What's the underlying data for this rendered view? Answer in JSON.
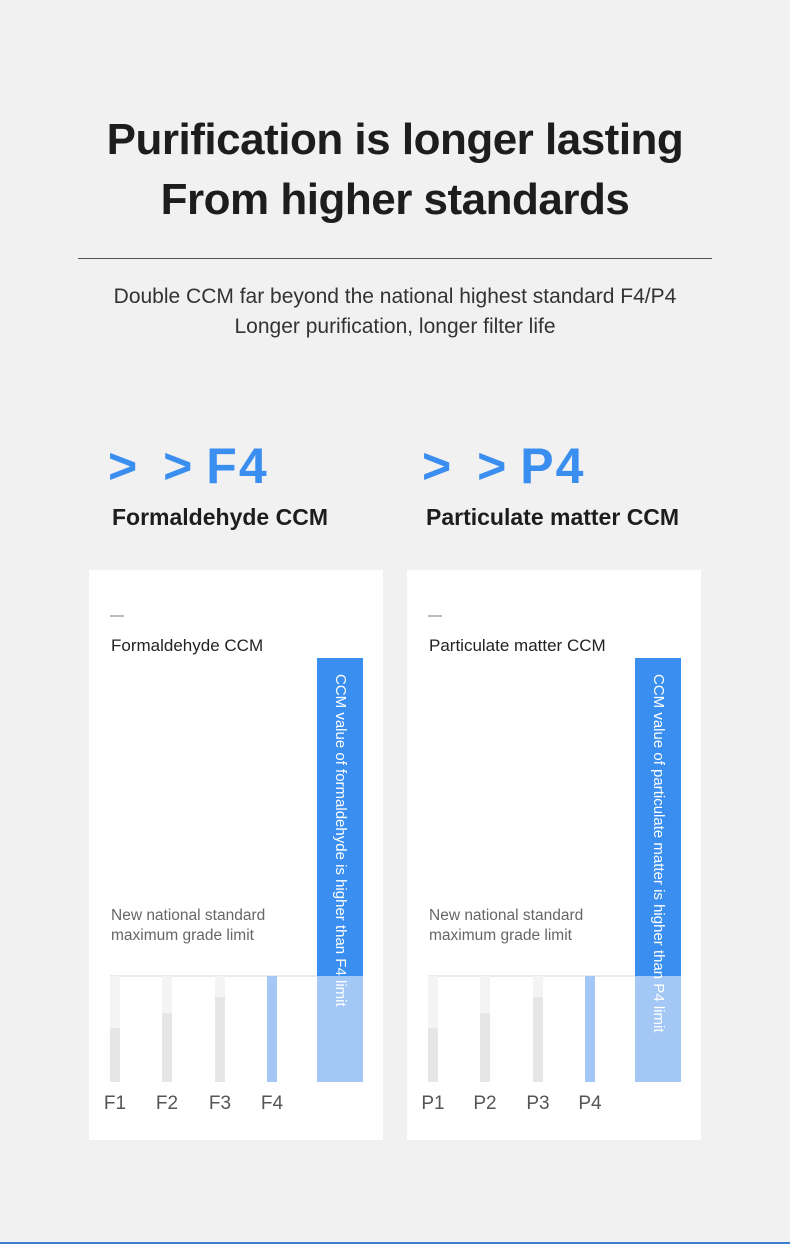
{
  "headline": {
    "line1": "Purification is longer lasting",
    "line2": "From higher standards"
  },
  "subtitle": {
    "line1": "Double CCM far beyond the national highest standard F4/P4",
    "line2": "Longer purification, longer filter life"
  },
  "colors": {
    "accent": "#3a8ef0",
    "bar_highlight": "#a3c8f6",
    "bar_grey": "#e6e6e6",
    "bar_grey_top": "#f4f4f4"
  },
  "left": {
    "arrows": "> >",
    "grade": "F4",
    "label": "Formaldehyde CCM"
  },
  "right": {
    "arrows": "> >",
    "grade": "P4",
    "label": "Particulate matter CCM"
  },
  "chart_data": [
    {
      "type": "bar",
      "title": "Formaldehyde CCM",
      "categories": [
        "F1",
        "F2",
        "F3",
        "F4",
        ""
      ],
      "values": [
        51,
        65,
        80,
        100,
        400
      ],
      "highlight_index": 3,
      "product_index": 4,
      "limit_value": 100,
      "limit_label_line1": "New national standard",
      "limit_label_line2": "maximum grade limit",
      "product_annotation": "CCM value of formaldehyde is higher than F4 limit",
      "ylim": [
        0,
        400
      ],
      "grid": false
    },
    {
      "type": "bar",
      "title": "Particulate matter CCM",
      "categories": [
        "P1",
        "P2",
        "P3",
        "P4",
        ""
      ],
      "values": [
        51,
        65,
        80,
        100,
        400
      ],
      "highlight_index": 3,
      "product_index": 4,
      "limit_value": 100,
      "limit_label_line1": "New national standard",
      "limit_label_line2": "maximum grade limit",
      "product_annotation": "CCM value of particulate matter is higher than P4 limit",
      "ylim": [
        0,
        400
      ],
      "grid": false
    }
  ]
}
